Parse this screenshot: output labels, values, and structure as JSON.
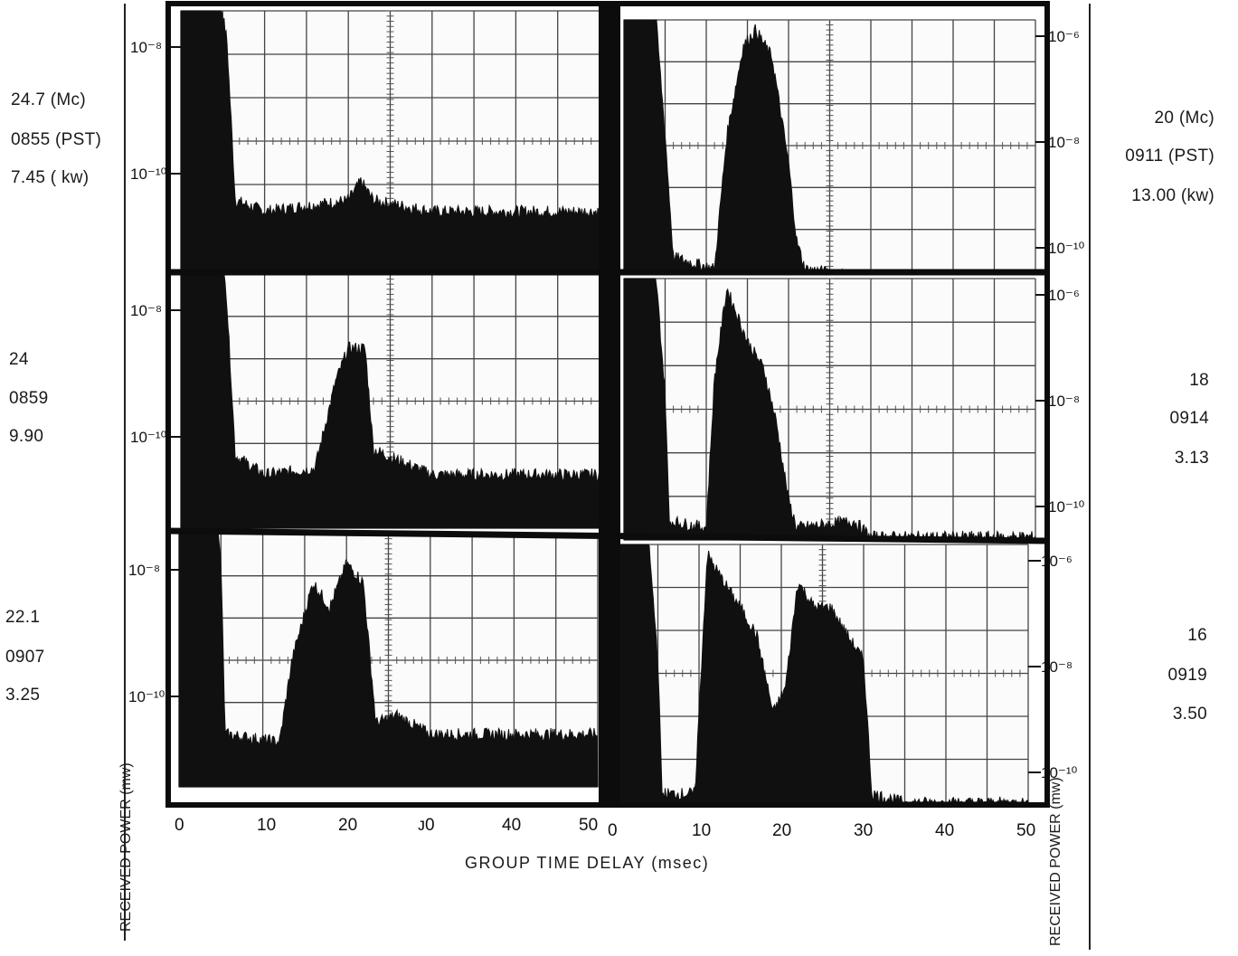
{
  "chart_data": {
    "type": "line",
    "xlabel": "GROUP TIME DELAY (msec)",
    "ylabel": "RECEIVED POWER (mw)",
    "xlim": [
      0,
      50
    ],
    "x_ticks": [
      "0",
      "10",
      "20",
      "30",
      "40",
      "50"
    ],
    "x_ticks_alt": [
      "0",
      "10",
      "20",
      "ᴊ0",
      "40",
      "50"
    ],
    "panels": [
      {
        "position": "top-left",
        "labels": [
          "24.7 (Mc)",
          "0855 (PST)",
          "7.45 ( kw)"
        ],
        "y_ticks": [
          "10⁻⁸",
          "10⁻¹⁰"
        ],
        "echo": [
          [
            0,
            1e-06
          ],
          [
            3,
            1e-06
          ],
          [
            5.5,
            1e-08
          ],
          [
            6.5,
            3e-11
          ],
          [
            10,
            2e-11
          ],
          [
            20,
            3e-11
          ],
          [
            21.5,
            6e-11
          ],
          [
            23,
            3e-11
          ],
          [
            30,
            2e-11
          ],
          [
            50,
            2e-11
          ]
        ]
      },
      {
        "position": "middle-left",
        "labels": [
          "24",
          "0859",
          "9.90"
        ],
        "y_ticks": [
          "10⁻⁸",
          "10⁻¹⁰"
        ],
        "echo": [
          [
            0,
            1e-06
          ],
          [
            4.5,
            1e-06
          ],
          [
            5.5,
            1e-08
          ],
          [
            6.5,
            4e-11
          ],
          [
            10,
            2e-11
          ],
          [
            16,
            2.5e-11
          ],
          [
            18.5,
            6e-10
          ],
          [
            20,
            2e-09
          ],
          [
            22,
            2e-09
          ],
          [
            23,
            5e-11
          ],
          [
            30,
            2e-11
          ],
          [
            50,
            2e-11
          ]
        ]
      },
      {
        "position": "bottom-left",
        "labels": [
          "22.1",
          "0907",
          "3.25"
        ],
        "y_ticks": [
          "10⁻⁸",
          "10⁻¹⁰"
        ],
        "echo": [
          [
            0,
            1e-06
          ],
          [
            3.5,
            1e-06
          ],
          [
            5,
            1e-08
          ],
          [
            5.5,
            2e-11
          ],
          [
            12,
            1.5e-11
          ],
          [
            13.5,
            3e-10
          ],
          [
            16,
            5e-09
          ],
          [
            18,
            2e-09
          ],
          [
            20,
            1e-08
          ],
          [
            22,
            5e-09
          ],
          [
            23.5,
            3e-11
          ],
          [
            26,
            4e-11
          ],
          [
            30,
            2e-11
          ],
          [
            50,
            2e-11
          ]
        ]
      },
      {
        "position": "top-right",
        "labels": [
          "20 (Mc)",
          "0911 (PST)",
          "13.00 (kw)"
        ],
        "y_ticks": [
          "10⁻⁶",
          "10⁻⁸",
          "10⁻¹⁰"
        ],
        "echo": [
          [
            0,
            1e-05
          ],
          [
            3.5,
            1e-05
          ],
          [
            5,
            1e-08
          ],
          [
            6,
            5e-11
          ],
          [
            11,
            3e-11
          ],
          [
            12.5,
            1e-08
          ],
          [
            14.5,
            5e-07
          ],
          [
            16,
            1e-06
          ],
          [
            18,
            3e-07
          ],
          [
            20,
            3e-09
          ],
          [
            21,
            1e-10
          ],
          [
            22,
            3e-11
          ],
          [
            30,
            2e-11
          ],
          [
            50,
            2e-11
          ]
        ]
      },
      {
        "position": "middle-right",
        "labels": [
          "18",
          "0914",
          "3.13"
        ],
        "y_ticks": [
          "10⁻⁶",
          "10⁻⁸",
          "10⁻¹⁰"
        ],
        "echo": [
          [
            0,
            1e-05
          ],
          [
            3.5,
            1e-05
          ],
          [
            5,
            1e-08
          ],
          [
            5.5,
            4e-11
          ],
          [
            10,
            3e-11
          ],
          [
            11,
            2e-08
          ],
          [
            12.5,
            1e-06
          ],
          [
            15,
            1e-07
          ],
          [
            17,
            3e-08
          ],
          [
            18.5,
            3e-09
          ],
          [
            20,
            1e-10
          ],
          [
            21,
            3e-11
          ],
          [
            28,
            4e-11
          ],
          [
            30,
            2e-11
          ],
          [
            50,
            2e-11
          ]
        ]
      },
      {
        "position": "bottom-right",
        "labels": [
          "16",
          "0919",
          "3.50"
        ],
        "y_ticks": [
          "10⁻⁶",
          "10⁻⁸",
          "10⁻¹⁰"
        ],
        "echo": [
          [
            0,
            1e-05
          ],
          [
            3.5,
            1e-05
          ],
          [
            5,
            1e-08
          ],
          [
            5.5,
            3e-11
          ],
          [
            9.5,
            3e-11
          ],
          [
            11,
            1e-06
          ],
          [
            13,
            3e-07
          ],
          [
            15,
            1e-07
          ],
          [
            17,
            3e-08
          ],
          [
            19,
            1e-09
          ],
          [
            20.5,
            3e-09
          ],
          [
            22,
            3e-07
          ],
          [
            24,
            1e-07
          ],
          [
            26,
            1e-07
          ],
          [
            28,
            3e-08
          ],
          [
            30,
            1e-08
          ],
          [
            31,
            3e-11
          ],
          [
            35,
            2e-11
          ],
          [
            50,
            2e-11
          ]
        ]
      }
    ]
  }
}
